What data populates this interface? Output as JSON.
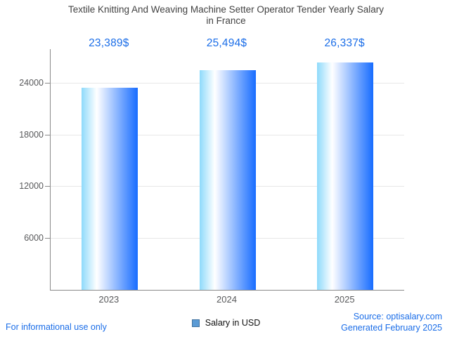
{
  "title_lines": [
    "Textile Knitting And Weaving Machine Setter Operator Tender Yearly Salary",
    "in France"
  ],
  "legend": {
    "label": "Salary in USD",
    "swatch_color": "#5b9bd5"
  },
  "footer": {
    "left_note": "For informational use only",
    "source": "Source: optisalary.com",
    "generated": "Generated February 2025"
  },
  "colors": {
    "title_text": "#424242",
    "value_label_text": "#1a6de8",
    "footer_text": "#1a6de8",
    "axis_line": "#8a8a8a",
    "gridline": "#e7e7e7",
    "tick_label_text": "#58595b",
    "bar_gradient": [
      "#8edafb",
      "#ffffff",
      "#176cff"
    ]
  },
  "chart_data": {
    "type": "bar",
    "title": "Textile Knitting And Weaving Machine Setter Operator Tender Yearly Salary in France",
    "categories": [
      "2023",
      "2024",
      "2025"
    ],
    "values": [
      23389,
      25494,
      26337
    ],
    "value_labels": [
      "23,389$",
      "25,494$",
      "26,337$"
    ],
    "series_name": "Salary in USD",
    "xlabel": "",
    "ylabel": "",
    "ylim": [
      0,
      27900
    ],
    "yticks": [
      6000,
      12000,
      18000,
      24000
    ],
    "grid": true,
    "legend_position": "bottom"
  }
}
